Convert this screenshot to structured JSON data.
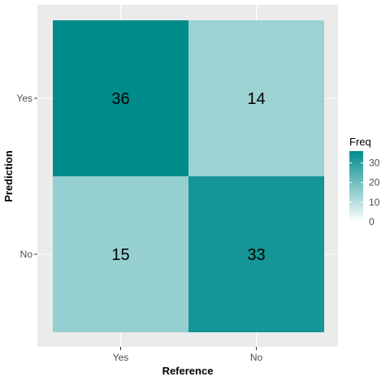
{
  "chart_data": {
    "type": "heatmap",
    "xlabel": "Reference",
    "ylabel": "Prediction",
    "x_categories": [
      "Yes",
      "No"
    ],
    "y_categories": [
      "Yes",
      "No"
    ],
    "cells": [
      {
        "reference": "Yes",
        "prediction": "Yes",
        "freq": 36,
        "label": "36"
      },
      {
        "reference": "No",
        "prediction": "Yes",
        "freq": 14,
        "label": "14"
      },
      {
        "reference": "Yes",
        "prediction": "No",
        "freq": 15,
        "label": "15"
      },
      {
        "reference": "No",
        "prediction": "No",
        "freq": 33,
        "label": "33"
      }
    ],
    "legend": {
      "title": "Freq",
      "placement": "right",
      "range": [
        0,
        36
      ],
      "ticks": [
        "0",
        "10",
        "20",
        "30"
      ],
      "tick_values": [
        0,
        10,
        20,
        30
      ],
      "low_color": "#ffffff",
      "high_color": "#008b8b"
    },
    "panel_background": "#ebebeb",
    "grid": true
  }
}
